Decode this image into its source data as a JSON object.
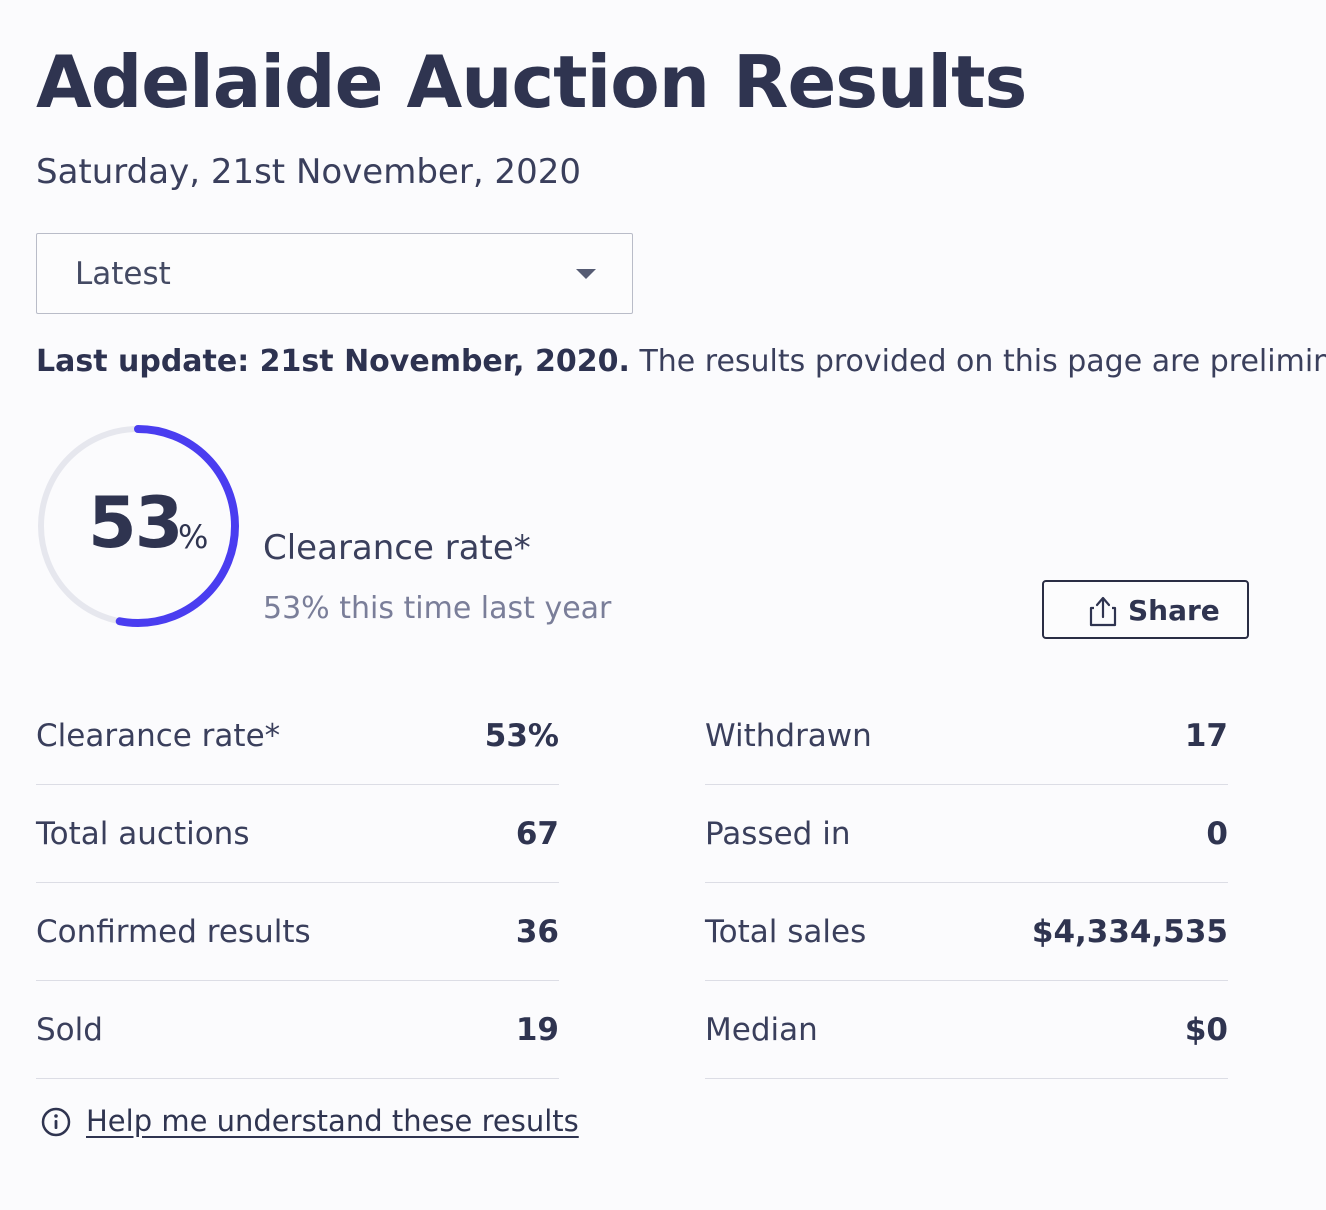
{
  "header": {
    "title": "Adelaide Auction Results",
    "date": "Saturday, 21st November, 2020"
  },
  "period_select": {
    "selected": "Latest"
  },
  "update": {
    "bold_text": "Last update: 21st November, 2020.",
    "text": " The results provided on this page are preliminary and c"
  },
  "gauge": {
    "value": "53",
    "unit": "%",
    "fraction": 0.53,
    "progress_color": "#4a3df0",
    "track_color": "#e6e7ee",
    "label": "Clearance rate*",
    "comparison": "53% this time last year"
  },
  "share": {
    "label": "Share",
    "icon": "share-icon"
  },
  "stats_left": [
    {
      "label": "Clearance rate*",
      "value": "53%"
    },
    {
      "label": "Total auctions",
      "value": "67"
    },
    {
      "label": "Confirmed results",
      "value": "36"
    },
    {
      "label": "Sold",
      "value": "19"
    }
  ],
  "stats_right": [
    {
      "label": "Withdrawn",
      "value": "17"
    },
    {
      "label": "Passed in",
      "value": "0"
    },
    {
      "label": "Total sales",
      "value": "$4,334,535"
    },
    {
      "label": "Median",
      "value": "$0"
    }
  ],
  "help": {
    "icon": "info-icon",
    "link": "Help me understand these results"
  }
}
